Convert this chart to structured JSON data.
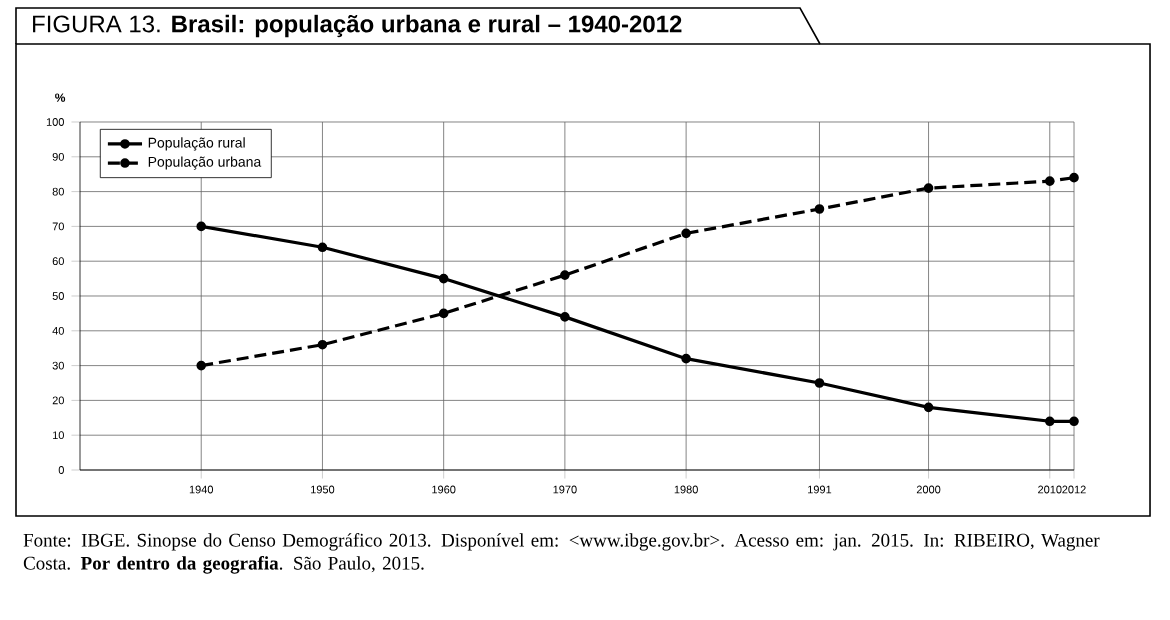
{
  "chart_data": {
    "type": "line",
    "title": "FIGURA 13. **Brasil: população urbana e rural – 1940-2012**",
    "ylabel": "%",
    "x": [
      1940,
      1950,
      1960,
      1970,
      1980,
      1991,
      2000,
      2010,
      2012
    ],
    "series": [
      {
        "name": "População rural",
        "color": "#000000",
        "line_style": "solid",
        "values": [
          70,
          64,
          55,
          44,
          32,
          25,
          18,
          14,
          14
        ]
      },
      {
        "name": "População urbana",
        "color": "#000000",
        "line_style": "dashed",
        "values": [
          30,
          36,
          45,
          56,
          68,
          75,
          81,
          83,
          84
        ]
      }
    ],
    "xlim": [
      1930,
      2012
    ],
    "xticks": [
      1940,
      1950,
      1960,
      1970,
      1980,
      1991,
      2000,
      2010,
      2012
    ],
    "ylim": [
      0,
      100
    ],
    "yticks": [
      0,
      10,
      20,
      30,
      40,
      50,
      60,
      70,
      80,
      90,
      100
    ],
    "grid": true,
    "legend": "top left",
    "marker": "circle",
    "annotations": [
      "Fonte: IBGE. Sinopse do Censo Demográfico 2013. Disponível em: <www.ibge.gov.br>. Acesso em: jan. 2015. In: RIBEIRO, Wagner Costa. **Por dentro da geografia**. São Paulo, 2015."
    ]
  }
}
